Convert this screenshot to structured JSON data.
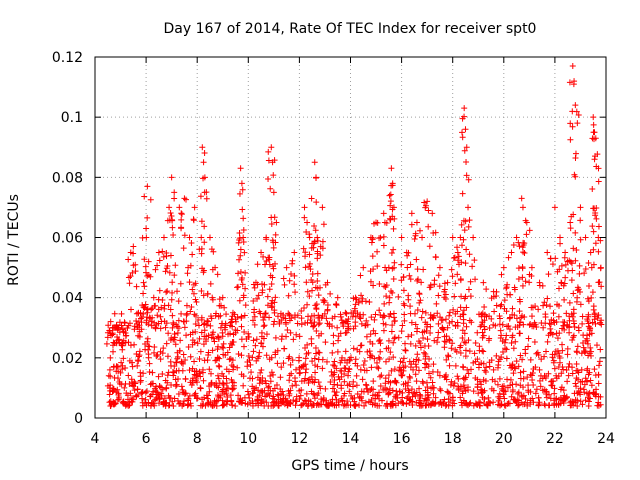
{
  "chart_data": {
    "type": "scatter",
    "title": "Day 167 of 2014, Rate Of TEC Index for receiver spt0",
    "xlabel": "GPS time / hours",
    "ylabel": "ROTI / TECUs",
    "xlim": [
      4,
      24
    ],
    "ylim": [
      0,
      0.12
    ],
    "x_ticks": [
      "4",
      "6",
      "8",
      "10",
      "12",
      "14",
      "16",
      "18",
      "20",
      "22",
      "24"
    ],
    "y_ticks": [
      "0",
      "0.02",
      "0.04",
      "0.06",
      "0.08",
      "0.1",
      "0.12"
    ],
    "grid": true,
    "marker": "+",
    "color": "#ff0000",
    "series": [
      {
        "name": "ROTI",
        "points": [
          [
            4.6,
            0.02
          ],
          [
            4.8,
            0.03
          ],
          [
            5.0,
            0.015
          ],
          [
            5.2,
            0.025
          ],
          [
            5.4,
            0.055
          ],
          [
            5.5,
            0.057
          ],
          [
            5.7,
            0.035
          ],
          [
            5.9,
            0.045
          ],
          [
            6.0,
            0.063
          ],
          [
            6.05,
            0.077
          ],
          [
            6.1,
            0.052
          ],
          [
            6.3,
            0.04
          ],
          [
            6.5,
            0.055
          ],
          [
            6.7,
            0.06
          ],
          [
            6.9,
            0.07
          ],
          [
            7.0,
            0.08
          ],
          [
            7.1,
            0.075
          ],
          [
            7.3,
            0.07
          ],
          [
            7.5,
            0.073
          ],
          [
            7.7,
            0.06
          ],
          [
            7.9,
            0.07
          ],
          [
            8.2,
            0.09
          ],
          [
            8.25,
            0.085
          ],
          [
            8.3,
            0.08
          ],
          [
            8.5,
            0.06
          ],
          [
            8.7,
            0.05
          ],
          [
            9.0,
            0.04
          ],
          [
            9.4,
            0.035
          ],
          [
            9.7,
            0.083
          ],
          [
            9.75,
            0.078
          ],
          [
            9.8,
            0.06
          ],
          [
            10.3,
            0.045
          ],
          [
            10.5,
            0.055
          ],
          [
            10.7,
            0.06
          ],
          [
            10.9,
            0.09
          ],
          [
            10.95,
            0.085
          ],
          [
            11.0,
            0.075
          ],
          [
            11.1,
            0.065
          ],
          [
            11.5,
            0.05
          ],
          [
            11.8,
            0.055
          ],
          [
            12.2,
            0.07
          ],
          [
            12.3,
            0.065
          ],
          [
            12.4,
            0.06
          ],
          [
            12.6,
            0.085
          ],
          [
            12.65,
            0.08
          ],
          [
            12.7,
            0.06
          ],
          [
            12.9,
            0.07
          ],
          [
            13.1,
            0.045
          ],
          [
            13.5,
            0.04
          ],
          [
            13.8,
            0.035
          ],
          [
            14.2,
            0.04
          ],
          [
            14.5,
            0.05
          ],
          [
            14.8,
            0.06
          ],
          [
            15.0,
            0.065
          ],
          [
            15.3,
            0.068
          ],
          [
            15.5,
            0.05
          ],
          [
            15.6,
            0.083
          ],
          [
            15.65,
            0.078
          ],
          [
            15.7,
            0.07
          ],
          [
            16.0,
            0.06
          ],
          [
            16.2,
            0.055
          ],
          [
            16.4,
            0.068
          ],
          [
            16.6,
            0.065
          ],
          [
            16.8,
            0.06
          ],
          [
            17.0,
            0.072
          ],
          [
            17.2,
            0.068
          ],
          [
            17.5,
            0.05
          ],
          [
            17.8,
            0.045
          ],
          [
            18.0,
            0.06
          ],
          [
            18.2,
            0.055
          ],
          [
            18.3,
            0.06
          ],
          [
            18.45,
            0.103
          ],
          [
            18.5,
            0.096
          ],
          [
            18.55,
            0.09
          ],
          [
            18.6,
            0.07
          ],
          [
            18.8,
            0.06
          ],
          [
            19.2,
            0.045
          ],
          [
            19.6,
            0.042
          ],
          [
            20.0,
            0.05
          ],
          [
            20.3,
            0.055
          ],
          [
            20.5,
            0.06
          ],
          [
            20.7,
            0.073
          ],
          [
            20.75,
            0.07
          ],
          [
            20.9,
            0.065
          ],
          [
            21.1,
            0.05
          ],
          [
            21.4,
            0.045
          ],
          [
            21.7,
            0.055
          ],
          [
            22.0,
            0.07
          ],
          [
            22.2,
            0.06
          ],
          [
            22.4,
            0.055
          ],
          [
            22.6,
            0.065
          ],
          [
            22.7,
            0.117
          ],
          [
            22.75,
            0.112
          ],
          [
            22.8,
            0.104
          ],
          [
            23.0,
            0.07
          ],
          [
            23.2,
            0.06
          ],
          [
            23.4,
            0.055
          ],
          [
            23.5,
            0.1
          ],
          [
            23.55,
            0.095
          ],
          [
            23.6,
            0.093
          ],
          [
            23.7,
            0.06
          ],
          [
            23.8,
            0.05
          ]
        ],
        "noise_band": {
          "x_range": [
            4.5,
            23.8
          ],
          "y_range": [
            0.004,
            0.035
          ],
          "count": 1800
        }
      }
    ]
  }
}
